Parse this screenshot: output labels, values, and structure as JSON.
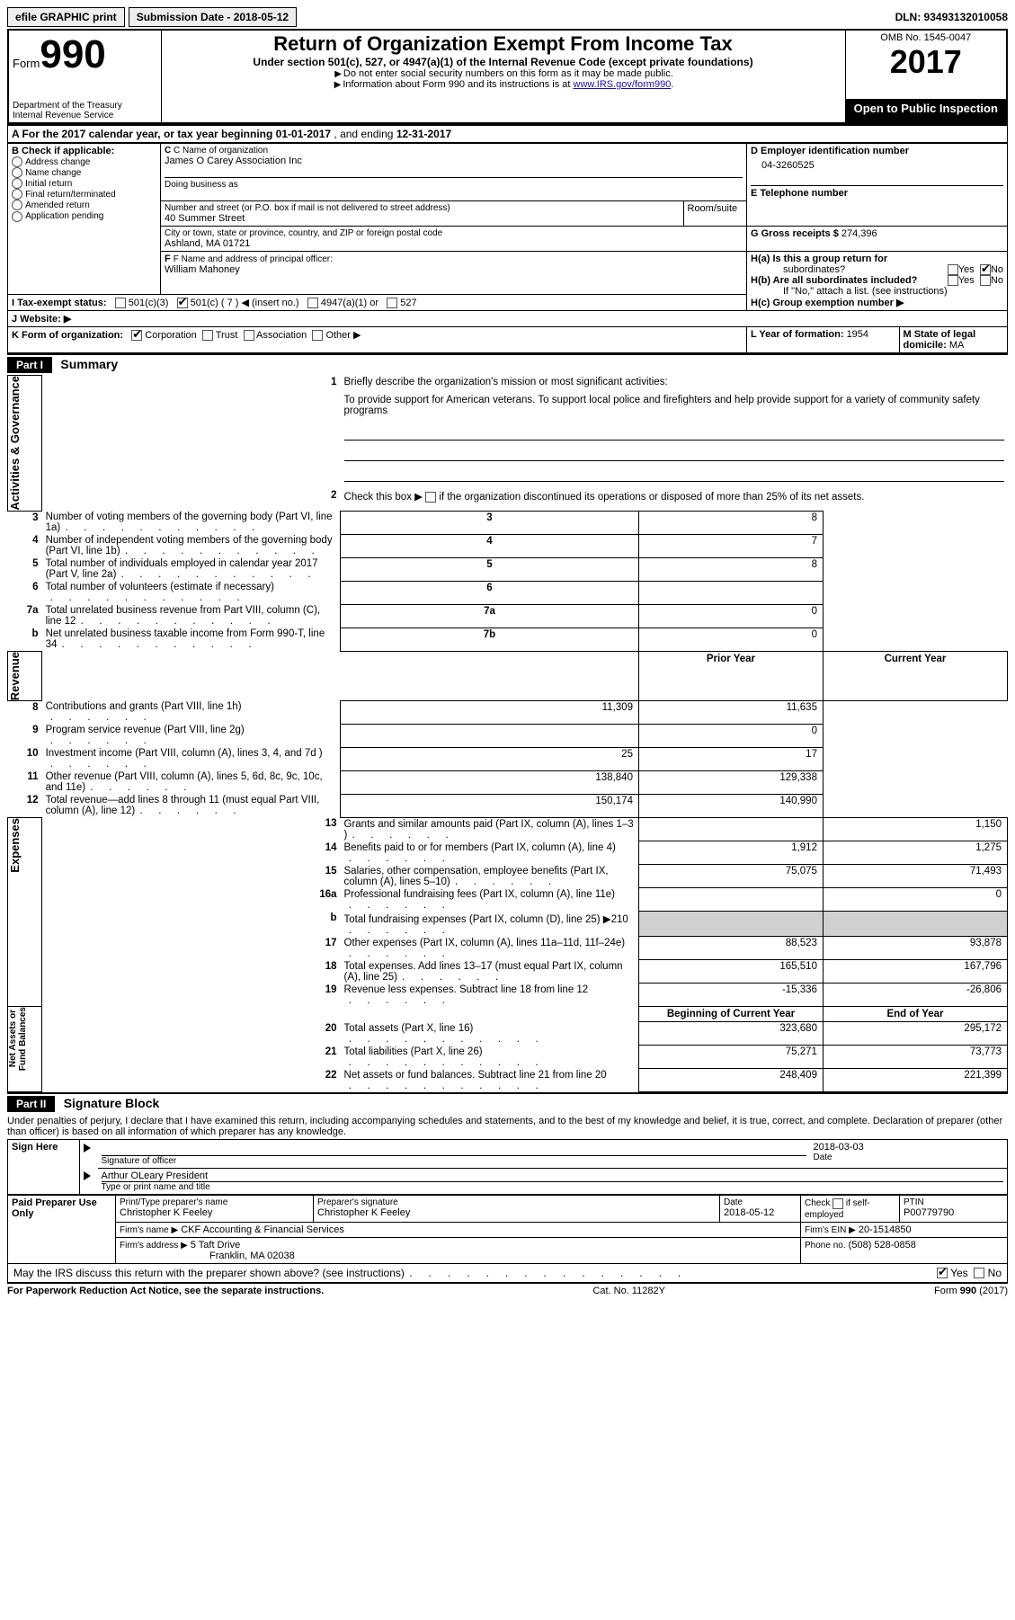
{
  "topbar": {
    "efile": "efile GRAPHIC print",
    "submission": "Submission Date - 2018-05-12",
    "dln": "DLN: 93493132010058"
  },
  "header": {
    "form_prefix": "Form",
    "form_no": "990",
    "dept1": "Department of the Treasury",
    "dept2": "Internal Revenue Service",
    "title": "Return of Organization Exempt From Income Tax",
    "subtitle": "Under section 501(c), 527, or 4947(a)(1) of the Internal Revenue Code (except private foundations)",
    "note1": "Do not enter social security numbers on this form as it may be made public.",
    "note2_pre": "Information about Form 990 and its instructions is at ",
    "note2_link": "www.IRS.gov/form990",
    "omb": "OMB No. 1545-0047",
    "year": "2017",
    "open": "Open to Public Inspection"
  },
  "calyear": {
    "prefix": "A   For the 2017 calendar year, or tax year beginning ",
    "begin": "01-01-2017",
    "mid": " , and ending ",
    "end": "12-31-2017"
  },
  "boxB": {
    "label": "B Check if applicable:",
    "opts": [
      "Address change",
      "Name change",
      "Initial return",
      "Final return/terminated",
      "Amended return",
      "Application pending"
    ]
  },
  "boxC": {
    "label": "C Name of organization",
    "name": "James O Carey Association Inc",
    "dba_label": "Doing business as",
    "addr_label": "Number and street (or P.O. box if mail is not delivered to street address)",
    "room_label": "Room/suite",
    "addr": "40 Summer Street",
    "city_label": "City or town, state or province, country, and ZIP or foreign postal code",
    "city": "Ashland, MA  01721"
  },
  "boxD": {
    "label": "D Employer identification number",
    "val": "04-3260525"
  },
  "boxE": {
    "label": "E Telephone number",
    "val": ""
  },
  "boxF": {
    "label": "F Name and address of principal officer:",
    "name": "William Mahoney"
  },
  "boxG": {
    "label": "G Gross receipts $ ",
    "val": "274,396"
  },
  "boxH": {
    "a": "H(a)  Is this a group return for",
    "a2": "subordinates?",
    "b": "H(b)  Are all subordinates included?",
    "b_note": "If \"No,\" attach a list. (see instructions)",
    "c": "H(c)  Group exemption number ▶"
  },
  "taxexempt": {
    "label": "I   Tax-exempt status:",
    "o1": "501(c)(3)",
    "o2": "501(c) ( 7 ) ◀ (insert no.)",
    "o3": "4947(a)(1) or",
    "o4": "527"
  },
  "website": "J   Website: ▶",
  "formorg": {
    "label": "K Form of organization:",
    "o1": "Corporation",
    "o2": "Trust",
    "o3": "Association",
    "o4": "Other ▶"
  },
  "yearform": {
    "label": "L Year of formation: ",
    "val": "1954"
  },
  "domicile": {
    "label": "M State of legal domicile:",
    "val": "MA"
  },
  "part1": {
    "hdr": "Part I",
    "title": "Summary",
    "q1": "Briefly describe the organization's mission or most significant activities:",
    "q1_text": "To provide support for American veterans. To support local police and firefighters and help provide support for a variety of community safety programs",
    "q2": "Check this box ▶           if the organization discontinued its operations or disposed of more than 25% of its net assets.",
    "lines": [
      {
        "n": "3",
        "t": "Number of voting members of the governing body (Part VI, line 1a)",
        "box": "3",
        "v": "8"
      },
      {
        "n": "4",
        "t": "Number of independent voting members of the governing body (Part VI, line 1b)",
        "box": "4",
        "v": "7"
      },
      {
        "n": "5",
        "t": "Total number of individuals employed in calendar year 2017 (Part V, line 2a)",
        "box": "5",
        "v": "8"
      },
      {
        "n": "6",
        "t": "Total number of volunteers (estimate if necessary)",
        "box": "6",
        "v": ""
      },
      {
        "n": "7a",
        "t": "Total unrelated business revenue from Part VIII, column (C), line 12",
        "box": "7a",
        "v": "0"
      },
      {
        "n": "b",
        "t": "Net unrelated business taxable income from Form 990-T, line 34",
        "box": "7b",
        "v": "0"
      }
    ],
    "col_hdr_prior": "Prior Year",
    "col_hdr_curr": "Current Year",
    "col_hdr_boy": "Beginning of Current Year",
    "col_hdr_eoy": "End of Year",
    "rev": [
      {
        "n": "8",
        "t": "Contributions and grants (Part VIII, line 1h)",
        "p": "11,309",
        "c": "11,635"
      },
      {
        "n": "9",
        "t": "Program service revenue (Part VIII, line 2g)",
        "p": "",
        "c": "0"
      },
      {
        "n": "10",
        "t": "Investment income (Part VIII, column (A), lines 3, 4, and 7d )",
        "p": "25",
        "c": "17"
      },
      {
        "n": "11",
        "t": "Other revenue (Part VIII, column (A), lines 5, 6d, 8c, 9c, 10c, and 11e)",
        "p": "138,840",
        "c": "129,338"
      },
      {
        "n": "12",
        "t": "Total revenue—add lines 8 through 11 (must equal Part VIII, column (A), line 12)",
        "p": "150,174",
        "c": "140,990"
      }
    ],
    "exp": [
      {
        "n": "13",
        "t": "Grants and similar amounts paid (Part IX, column (A), lines 1–3 )",
        "p": "",
        "c": "1,150"
      },
      {
        "n": "14",
        "t": "Benefits paid to or for members (Part IX, column (A), line 4)",
        "p": "1,912",
        "c": "1,275"
      },
      {
        "n": "15",
        "t": "Salaries, other compensation, employee benefits (Part IX, column (A), lines 5–10)",
        "p": "75,075",
        "c": "71,493"
      },
      {
        "n": "16a",
        "t": "Professional fundraising fees (Part IX, column (A), line 11e)",
        "p": "",
        "c": "0"
      },
      {
        "n": "b",
        "t": "Total fundraising expenses (Part IX, column (D), line 25) ▶210",
        "p": "SHADE",
        "c": "SHADE"
      },
      {
        "n": "17",
        "t": "Other expenses (Part IX, column (A), lines 11a–11d, 11f–24e)",
        "p": "88,523",
        "c": "93,878"
      },
      {
        "n": "18",
        "t": "Total expenses. Add lines 13–17 (must equal Part IX, column (A), line 25)",
        "p": "165,510",
        "c": "167,796"
      },
      {
        "n": "19",
        "t": "Revenue less expenses. Subtract line 18 from line 12",
        "p": "-15,336",
        "c": "-26,806"
      }
    ],
    "net": [
      {
        "n": "20",
        "t": "Total assets (Part X, line 16)",
        "p": "323,680",
        "c": "295,172"
      },
      {
        "n": "21",
        "t": "Total liabilities (Part X, line 26)",
        "p": "75,271",
        "c": "73,773"
      },
      {
        "n": "22",
        "t": "Net assets or fund balances. Subtract line 21 from line 20",
        "p": "248,409",
        "c": "221,399"
      }
    ],
    "vlabels": {
      "gov": "Activities & Governance",
      "rev": "Revenue",
      "exp": "Expenses",
      "net": "Net Assets or\nFund Balances"
    }
  },
  "part2": {
    "hdr": "Part II",
    "title": "Signature Block",
    "decl": "Under penalties of perjury, I declare that I have examined this return, including accompanying schedules and statements, and to the best of my knowledge and belief, it is true, correct, and complete. Declaration of preparer (other than officer) is based on all information of which preparer has any knowledge."
  },
  "sign": {
    "side": "Sign Here",
    "sig_label": "Signature of officer",
    "date_label": "Date",
    "date": "2018-03-03",
    "name": "Arthur OLeary  President",
    "name_label": "Type or print name and title"
  },
  "prep": {
    "side": "Paid Preparer Use Only",
    "r1": {
      "l1": "Print/Type preparer's name",
      "v1": "Christopher K Feeley",
      "l2": "Preparer's signature",
      "v2": "Christopher K Feeley",
      "l3": "Date",
      "v3": "2018-05-12",
      "l4": "Check         if self-employed",
      "l5": "PTIN",
      "v5": "P00779790"
    },
    "r2": {
      "l": "Firm's name     ▶",
      "v": "CKF Accounting & Financial Services",
      "l2": "Firm's EIN ▶",
      "v2": "20-1514850"
    },
    "r3": {
      "l": "Firm's address ▶",
      "v": "5 Taft Drive",
      "city": "Franklin, MA  02038",
      "l2": "Phone no.",
      "v2": "(508) 528-0858"
    }
  },
  "discuss": "May the IRS discuss this return with the preparer shown above? (see instructions)",
  "footer": {
    "left": "For Paperwork Reduction Act Notice, see the separate instructions.",
    "mid": "Cat. No. 11282Y",
    "right": "Form 990 (2017)"
  },
  "yn": {
    "yes": "Yes",
    "no": "No"
  }
}
